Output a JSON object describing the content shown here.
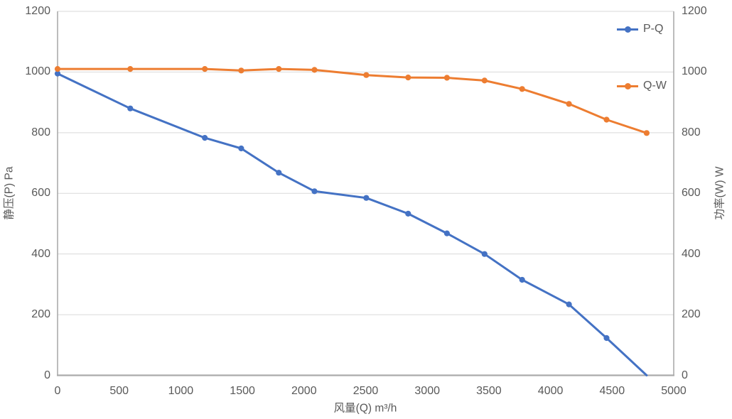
{
  "chart_data": {
    "type": "line",
    "title": "",
    "xlabel": "风量(Q)  m³/h",
    "ylabel_left": "静压(P) Pa",
    "ylabel_right": "功率(W) W",
    "xlim": [
      0,
      5000
    ],
    "ylim_left": [
      0,
      1200
    ],
    "ylim_right": [
      0,
      1200
    ],
    "x_ticks": [
      0,
      500,
      1000,
      1500,
      2000,
      2500,
      3000,
      3500,
      4000,
      4500,
      5000
    ],
    "y_ticks_left": [
      0,
      200,
      400,
      600,
      800,
      1000,
      1200
    ],
    "y_ticks_right": [
      0,
      200,
      400,
      600,
      800,
      1000,
      1200
    ],
    "grid": "horizontal",
    "legend_position": "inside-top-right",
    "x": [
      0,
      590,
      1195,
      1490,
      1795,
      2085,
      2505,
      2845,
      3160,
      3465,
      3770,
      4150,
      4455,
      4780
    ],
    "series": [
      {
        "name": "P-Q",
        "axis": "left",
        "color": "#4472C4",
        "end_marker": false,
        "values": [
          995,
          880,
          783,
          748,
          668,
          607,
          585,
          533,
          468,
          400,
          315,
          234,
          123,
          0
        ]
      },
      {
        "name": "Q-W",
        "axis": "right",
        "color": "#ED7D31",
        "end_marker": true,
        "values": [
          1010,
          1010,
          1010,
          1005,
          1010,
          1007,
          990,
          982,
          981,
          972,
          944,
          895,
          843,
          799
        ]
      }
    ]
  },
  "colors": {
    "gridline": "#D9D9D9",
    "axis_line": "#ABABAB",
    "tick_text": "#595959",
    "background": "#FFFFFF"
  }
}
